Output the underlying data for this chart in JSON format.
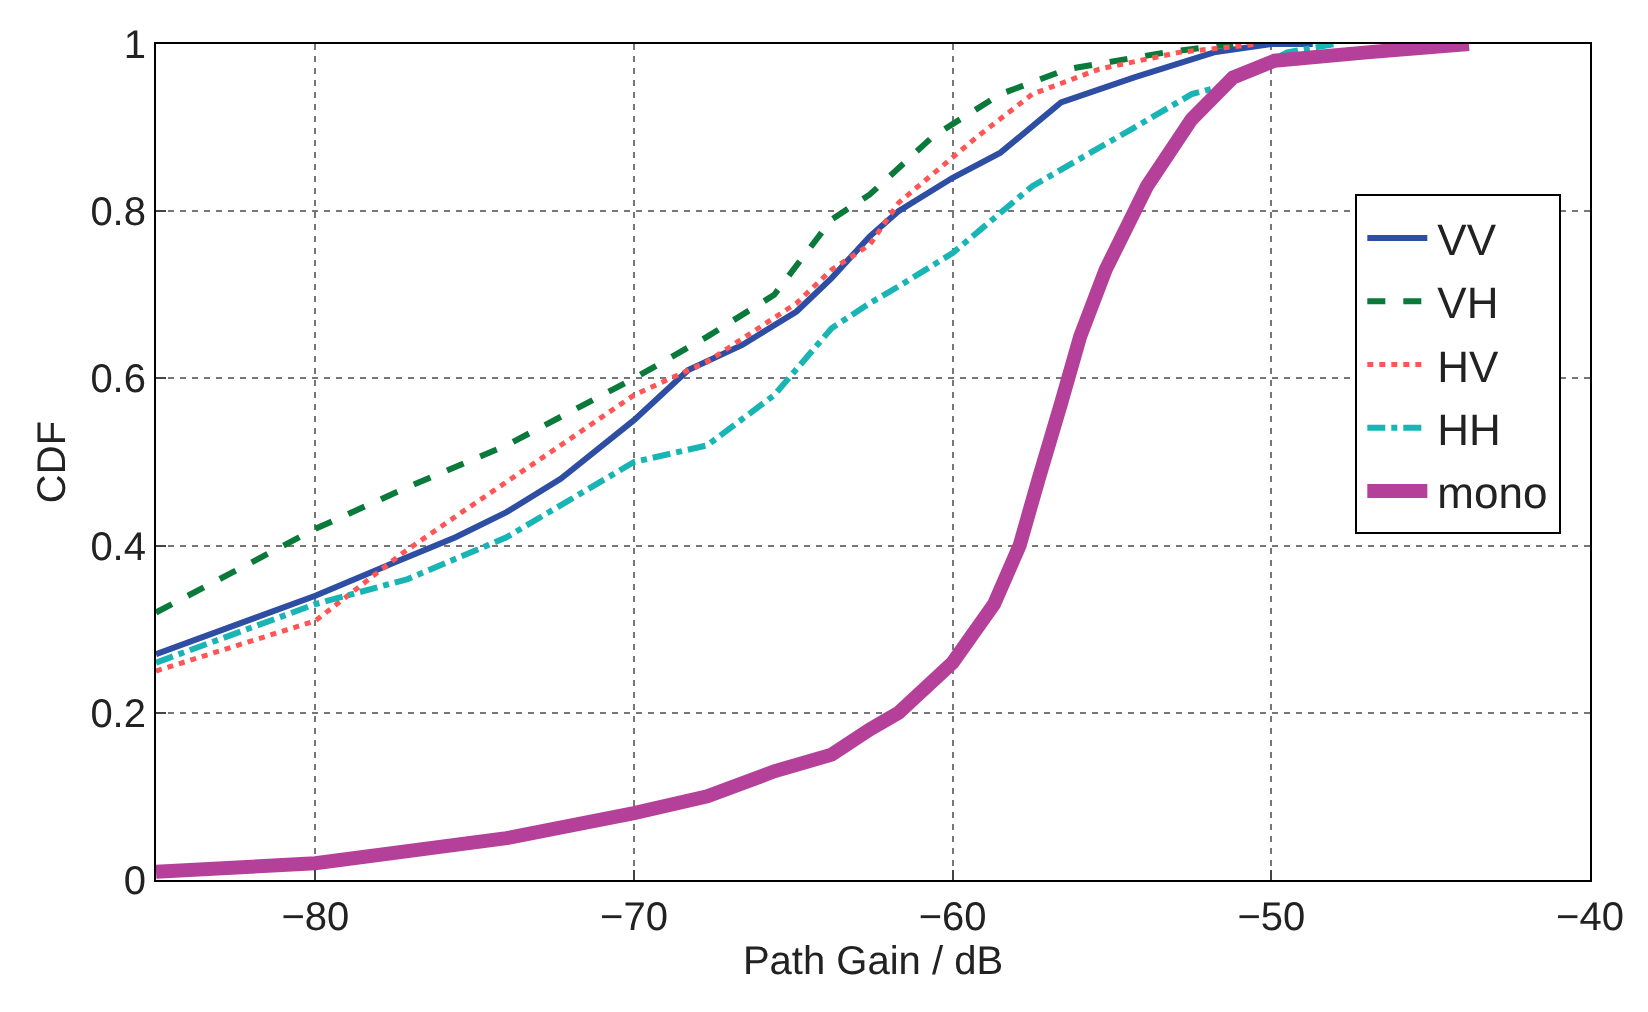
{
  "chart_data": {
    "type": "line",
    "xlabel": "Path Gain / dB",
    "ylabel": "CDF",
    "xlim": [
      -85,
      -40
    ],
    "ylim": [
      0,
      1
    ],
    "xticks": [
      {
        "value": -80,
        "label": "−80"
      },
      {
        "value": -70,
        "label": "−70"
      },
      {
        "value": -60,
        "label": "−60"
      },
      {
        "value": -50,
        "label": "−50"
      },
      {
        "value": -40,
        "label": "−40"
      }
    ],
    "yticks": [
      0,
      0.2,
      0.4,
      0.6,
      0.8,
      1
    ],
    "grid": true,
    "legend": "right",
    "series": [
      {
        "name": "VV",
        "color": "#2e4ea3",
        "line_style": "solid",
        "x": [
          -85,
          -80,
          -77.5,
          -75.6,
          -74,
          -72.3,
          -70,
          -68.3,
          -66.6,
          -64.9,
          -63.8,
          -62.6,
          -61.7,
          -60,
          -58.5,
          -56.6,
          -54.3,
          -51.8,
          -50,
          -48.7
        ],
        "values": [
          0.27,
          0.34,
          0.38,
          0.41,
          0.44,
          0.48,
          0.55,
          0.61,
          0.64,
          0.68,
          0.72,
          0.77,
          0.8,
          0.84,
          0.87,
          0.93,
          0.96,
          0.99,
          1.0,
          1.0
        ]
      },
      {
        "name": "VH",
        "color": "#0a7a3a",
        "line_style": "dashed",
        "x": [
          -85,
          -80,
          -77.1,
          -74,
          -70,
          -67.7,
          -65.6,
          -63.8,
          -62.6,
          -60.6,
          -58.5,
          -56.4,
          -53.3,
          -51.2
        ],
        "values": [
          0.32,
          0.42,
          0.47,
          0.52,
          0.6,
          0.65,
          0.7,
          0.79,
          0.82,
          0.89,
          0.94,
          0.97,
          0.99,
          1.0
        ]
      },
      {
        "name": "HV",
        "color": "#ff5555",
        "line_style": "dotted",
        "x": [
          -85,
          -80,
          -77.3,
          -75.4,
          -72.3,
          -70,
          -67.7,
          -64.9,
          -63.8,
          -62.6,
          -61.7,
          -59.2,
          -57.5,
          -55.4,
          -52.9,
          -50.4
        ],
        "values": [
          0.25,
          0.31,
          0.39,
          0.44,
          0.52,
          0.58,
          0.62,
          0.69,
          0.73,
          0.76,
          0.81,
          0.89,
          0.94,
          0.97,
          0.99,
          1.0
        ]
      },
      {
        "name": "HH",
        "color": "#19b5b5",
        "line_style": "dashdot",
        "x": [
          -85,
          -80,
          -77.1,
          -74,
          -70,
          -67.7,
          -65.6,
          -63.8,
          -62.6,
          -61.7,
          -60,
          -57.5,
          -54.3,
          -52.5,
          -51.5,
          -49.5,
          -48
        ],
        "values": [
          0.26,
          0.33,
          0.36,
          0.41,
          0.5,
          0.52,
          0.58,
          0.66,
          0.69,
          0.71,
          0.75,
          0.83,
          0.9,
          0.94,
          0.95,
          0.99,
          1.0
        ]
      },
      {
        "name": "mono",
        "color": "#b5409a",
        "line_style": "solid",
        "x": [
          -85,
          -80,
          -74,
          -70,
          -67.7,
          -65.6,
          -63.8,
          -62.6,
          -61.7,
          -60,
          -58.7,
          -57.9,
          -57.3,
          -56.6,
          -56,
          -55.2,
          -53.9,
          -52.5,
          -51.2,
          -49.9,
          -47,
          -43.8
        ],
        "values": [
          0.01,
          0.02,
          0.05,
          0.08,
          0.1,
          0.13,
          0.15,
          0.18,
          0.2,
          0.26,
          0.33,
          0.4,
          0.48,
          0.57,
          0.65,
          0.73,
          0.83,
          0.91,
          0.96,
          0.98,
          0.99,
          1.0
        ]
      }
    ]
  }
}
